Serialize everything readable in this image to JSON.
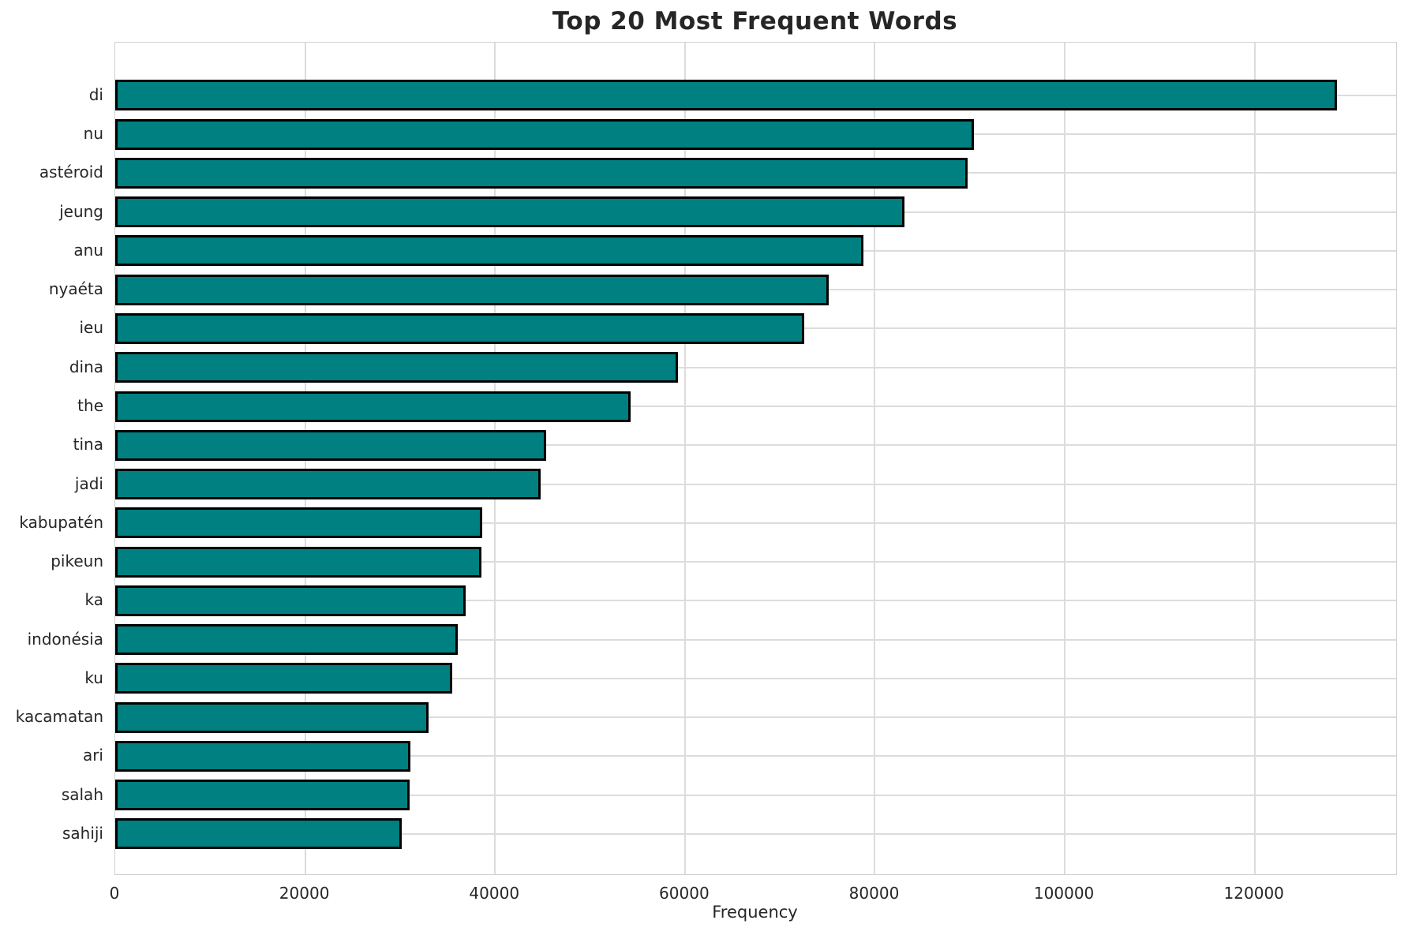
{
  "chart_data": {
    "type": "bar",
    "orientation": "horizontal",
    "title": "Top 20 Most Frequent Words",
    "xlabel": "Frequency",
    "ylabel": "",
    "categories": [
      "di",
      "nu",
      "astéroid",
      "jeung",
      "anu",
      "nyaéta",
      "ieu",
      "dina",
      "the",
      "tina",
      "jadi",
      "kabupatén",
      "pikeun",
      "ka",
      "indonésia",
      "ku",
      "kacamatan",
      "ari",
      "salah",
      "sahiji"
    ],
    "values": [
      128700,
      90400,
      89800,
      83100,
      78800,
      75100,
      72600,
      59300,
      54300,
      45400,
      44800,
      38650,
      38600,
      36900,
      36100,
      35500,
      33000,
      31100,
      31000,
      30200
    ],
    "xlim": [
      0,
      134900
    ],
    "xticks": [
      0,
      20000,
      40000,
      60000,
      80000,
      100000,
      120000
    ],
    "xtick_labels": [
      "0",
      "20000",
      "40000",
      "60000",
      "80000",
      "100000",
      "120000"
    ],
    "grid": true,
    "legend": "none",
    "bar_color": "#008080",
    "bar_edge_color": "#000000",
    "grid_color": "#dcdcdc",
    "text_color": "#262626",
    "background_color": "#ffffff"
  }
}
